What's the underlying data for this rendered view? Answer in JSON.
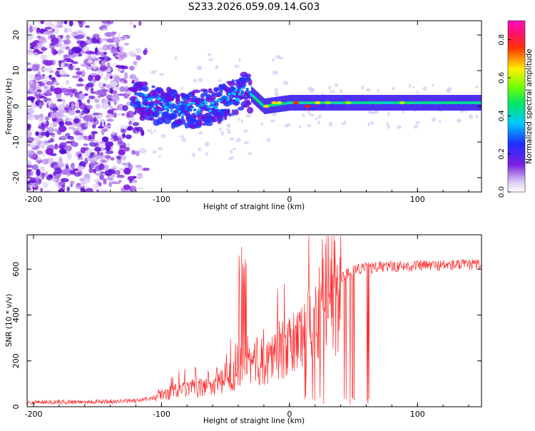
{
  "title": "S233.2026.059.09.14.G03",
  "chart_data": [
    {
      "type": "heatmap",
      "title": "S233.2026.059.09.14.G03",
      "xlabel": "Height of straight line (km)",
      "ylabel": "Frequency (Hz)",
      "xlim": [
        -205,
        150
      ],
      "ylim": [
        -24,
        24
      ],
      "x_ticks": [
        -200,
        -100,
        0,
        100
      ],
      "y_ticks": [
        -20,
        -10,
        0,
        10,
        20
      ],
      "colorbar": {
        "label": "Normalized spectral amplitude",
        "range": [
          0,
          0.9
        ],
        "ticks": [
          0.0,
          0.2,
          0.4,
          0.6,
          0.8
        ],
        "colormap": "white-purple-blue-cyan-green-yellow-red-magenta"
      },
      "description_series": {
        "name": "dominant frequency ridge (approx.)",
        "x": [
          -120,
          -100,
          -80,
          -60,
          -45,
          -35,
          -20,
          0,
          20,
          50,
          100,
          150
        ],
        "y": [
          2,
          0,
          -1,
          0,
          2,
          5,
          0,
          1,
          1,
          1,
          1,
          1
        ]
      }
    },
    {
      "type": "line",
      "xlabel": "Height of straight line (km)",
      "ylabel": "SNR (10 * v/v)",
      "xlim": [
        -205,
        150
      ],
      "ylim": [
        0,
        750
      ],
      "x_ticks": [
        -200,
        -100,
        0,
        100
      ],
      "y_ticks": [
        0,
        200,
        400,
        600
      ],
      "color": "#ff2a2a",
      "series": [
        {
          "name": "SNR envelope (approx.)",
          "x": [
            -205,
            -150,
            -120,
            -105,
            -100,
            -90,
            -80,
            -70,
            -60,
            -50,
            -40,
            -35,
            -30,
            -20,
            -10,
            0,
            10,
            20,
            30,
            40,
            50,
            70,
            100,
            150
          ],
          "y": [
            20,
            22,
            25,
            40,
            60,
            80,
            90,
            95,
            110,
            130,
            200,
            290,
            220,
            230,
            280,
            300,
            380,
            450,
            520,
            560,
            600,
            610,
            615,
            620
          ]
        }
      ]
    }
  ]
}
